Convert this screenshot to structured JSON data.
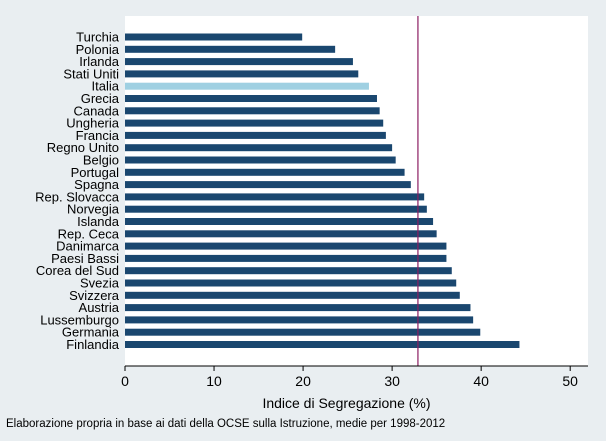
{
  "chart_data": {
    "type": "bar",
    "orientation": "horizontal",
    "categories": [
      "Turchia",
      "Polonia",
      "Irlanda",
      "Stati Uniti",
      "Italia",
      "Grecia",
      "Canada",
      "Ungheria",
      "Francia",
      "Regno Unito",
      "Belgio",
      "Portugal",
      "Spagna",
      "Rep. Slovacca",
      "Norvegia",
      "Islanda",
      "Rep. Ceca",
      "Danimarca",
      "Paesi Bassi",
      "Corea del Sud",
      "Svezia",
      "Svizzera",
      "Austria",
      "Lussemburgo",
      "Germania",
      "Finlandia"
    ],
    "values": [
      19.9,
      23.6,
      25.6,
      26.2,
      27.4,
      28.3,
      28.6,
      29.0,
      29.3,
      30.0,
      30.4,
      31.4,
      32.1,
      33.6,
      33.9,
      34.6,
      35.0,
      36.1,
      36.1,
      36.7,
      37.2,
      37.6,
      38.8,
      39.1,
      39.9,
      44.3
    ],
    "highlight_category": "Italia",
    "reference_line": 32.9,
    "xlabel": "Indice di Segregazione (%)",
    "xlim": [
      0,
      52
    ],
    "xticks": [
      0,
      10,
      20,
      30,
      40,
      50
    ],
    "grid": false,
    "colors": {
      "bar": "#1a476f",
      "highlight": "#9fd0e2",
      "reference_line": "#8b1c62",
      "plot_background": "#ffffff",
      "outer_background": "#e9eef1"
    }
  },
  "footnote": "Elaborazione propria in base ai dati della OCSE sulla Istruzione, medie per 1998-2012"
}
